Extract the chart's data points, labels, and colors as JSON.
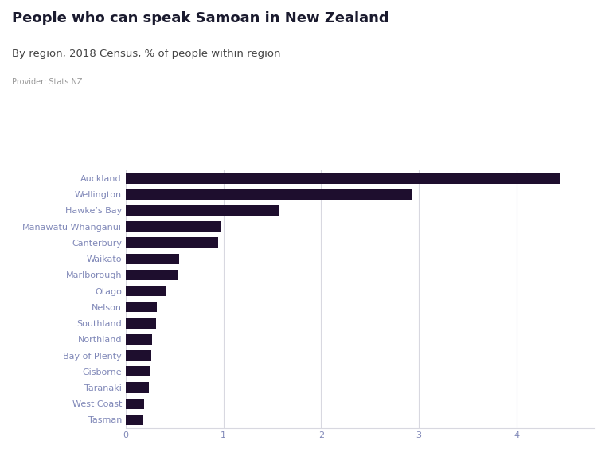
{
  "title": "People who can speak Samoan in New Zealand",
  "subtitle": "By region, 2018 Census, % of people within region",
  "provider": "Provider: Stats NZ",
  "categories": [
    "Auckland",
    "Wellington",
    "Hawke’s Bay",
    "Manawatū-Whanganui",
    "Canterbury",
    "Waikato",
    "Marlborough",
    "Otago",
    "Nelson",
    "Southland",
    "Northland",
    "Bay of Plenty",
    "Gisborne",
    "Taranaki",
    "West Coast",
    "Tasman"
  ],
  "values": [
    4.45,
    2.93,
    1.57,
    0.97,
    0.95,
    0.55,
    0.53,
    0.42,
    0.32,
    0.31,
    0.27,
    0.26,
    0.25,
    0.24,
    0.19,
    0.18
  ],
  "bar_color": "#1e0e2e",
  "background_color": "#ffffff",
  "label_color": "#8088b8",
  "grid_color": "#d8d8e0",
  "xlim": [
    0,
    4.8
  ],
  "xticks": [
    0,
    1,
    2,
    3,
    4
  ],
  "figure_nz_color": "#4466cc",
  "title_color": "#1a1a2e",
  "subtitle_color": "#444444",
  "provider_color": "#999999",
  "title_fontsize": 13,
  "subtitle_fontsize": 9.5,
  "provider_fontsize": 7,
  "label_fontsize": 8,
  "tick_fontsize": 8
}
